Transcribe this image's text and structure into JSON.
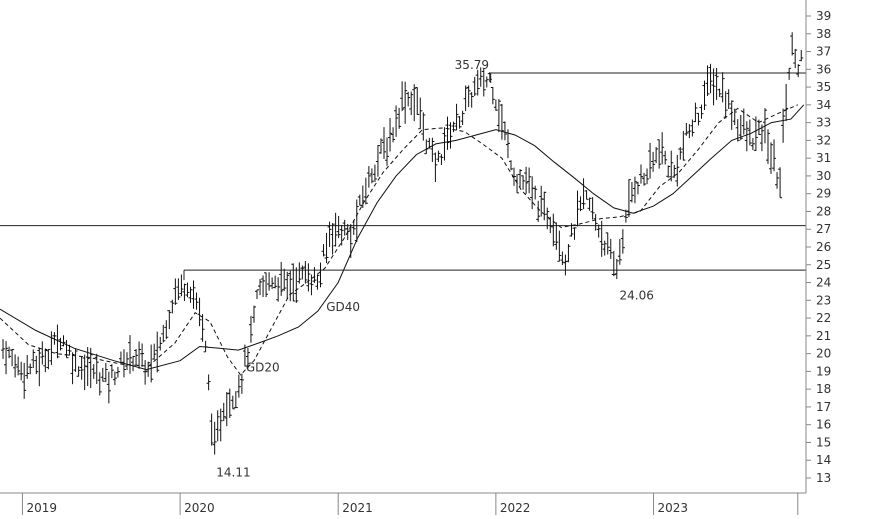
{
  "chart_data": {
    "type": "line",
    "style": "weekly-bar-price-chart",
    "colors": {
      "price": "#111111",
      "lines": "#222222",
      "axis": "#888888",
      "text": "#333333"
    },
    "y_axis": {
      "range": [
        12.2,
        39.9
      ],
      "ticks": [
        13,
        14,
        15,
        16,
        17,
        18,
        19,
        20,
        21,
        22,
        23,
        24,
        25,
        26,
        27,
        28,
        29,
        30,
        31,
        32,
        33,
        34,
        35,
        36,
        37,
        38,
        39
      ],
      "side": "right"
    },
    "x_axis": {
      "range": [
        "2018-11-10",
        "2023-12-20"
      ],
      "ticks": [
        {
          "label": "2019",
          "date": "2019-01-01"
        },
        {
          "label": "2020",
          "date": "2020-01-01"
        },
        {
          "label": "2021",
          "date": "2021-01-01"
        },
        {
          "label": "2022",
          "date": "2022-01-01"
        },
        {
          "label": "2023",
          "date": "2023-01-01"
        }
      ],
      "minor_tick_dates": [
        "2023-12-01"
      ]
    },
    "horizontal_lines": [
      {
        "value": 27.2,
        "from": "2018-11-10",
        "to": "2023-12-20"
      },
      {
        "value": 24.7,
        "from": "2020-01-10",
        "to": "2023-12-20"
      },
      {
        "value": 35.79,
        "from": "2021-12-20",
        "to": "2023-12-20"
      }
    ],
    "annotations": [
      {
        "text": "35.79",
        "date": "2021-12-20",
        "value": 35.79
      },
      {
        "text": "24.06",
        "date": "2022-10-05",
        "value": 24.06
      },
      {
        "text": "14.11",
        "date": "2020-03-20",
        "value": 14.11
      },
      {
        "text": "GD40",
        "date": "2021-01-01",
        "value": 22.4
      },
      {
        "text": "GD20",
        "date": "2020-06-15",
        "value": 19.0
      }
    ],
    "series": [
      {
        "label_text": "GD20",
        "style": "dashed",
        "x": [
          "2018-11-10",
          "2019-01-15",
          "2019-03-20",
          "2019-06-01",
          "2019-08-20",
          "2019-10-20",
          "2019-12-20",
          "2020-02-05",
          "2020-03-10",
          "2020-04-20",
          "2020-05-20",
          "2020-06-20",
          "2020-08-01",
          "2020-09-10",
          "2020-10-20",
          "2020-12-01",
          "2021-01-15",
          "2021-03-01",
          "2021-04-15",
          "2021-06-01",
          "2021-07-15",
          "2021-09-01",
          "2021-10-20",
          "2021-12-01",
          "2022-01-15",
          "2022-03-01",
          "2022-04-15",
          "2022-06-01",
          "2022-07-15",
          "2022-09-01",
          "2022-10-15",
          "2022-12-01",
          "2023-01-15",
          "2023-03-01",
          "2023-04-15",
          "2023-06-01",
          "2023-07-15",
          "2023-09-01",
          "2023-10-15",
          "2023-12-01"
        ],
        "values": [
          22.0,
          20.5,
          20.0,
          19.8,
          19.4,
          19.3,
          20.6,
          22.3,
          21.8,
          19.8,
          18.8,
          19.6,
          21.5,
          23.3,
          24.0,
          24.8,
          26.5,
          28.5,
          30.2,
          31.5,
          32.6,
          32.7,
          32.5,
          31.8,
          31.0,
          29.2,
          28.0,
          27.1,
          27.3,
          27.6,
          27.7,
          28.0,
          29.4,
          30.2,
          31.5,
          33.0,
          33.8,
          33.0,
          33.5,
          34.0
        ]
      },
      {
        "label_text": "GD40",
        "style": "solid",
        "x": [
          "2018-11-10",
          "2019-02-01",
          "2019-05-01",
          "2019-08-01",
          "2019-10-15",
          "2020-01-01",
          "2020-02-15",
          "2020-04-01",
          "2020-05-15",
          "2020-07-01",
          "2020-08-15",
          "2020-10-01",
          "2020-11-15",
          "2021-01-01",
          "2021-02-15",
          "2021-04-01",
          "2021-05-15",
          "2021-07-01",
          "2021-08-15",
          "2021-10-01",
          "2021-11-15",
          "2022-01-01",
          "2022-02-15",
          "2022-04-01",
          "2022-05-15",
          "2022-07-01",
          "2022-08-15",
          "2022-10-01",
          "2022-11-15",
          "2023-01-01",
          "2023-02-15",
          "2023-04-01",
          "2023-05-15",
          "2023-07-01",
          "2023-08-15",
          "2023-10-01",
          "2023-11-15",
          "2023-12-15"
        ],
        "values": [
          22.5,
          21.3,
          20.3,
          19.6,
          19.1,
          19.6,
          20.4,
          20.3,
          20.2,
          20.6,
          21.0,
          21.5,
          22.4,
          24.0,
          26.5,
          28.5,
          30.0,
          31.2,
          31.8,
          32.0,
          32.3,
          32.6,
          32.3,
          31.7,
          30.8,
          29.9,
          29.0,
          28.2,
          27.9,
          28.3,
          29.0,
          30.0,
          31.0,
          32.0,
          32.4,
          33.0,
          33.2,
          34.0
        ]
      }
    ],
    "price_path": {
      "x": [
        "2018-11-10",
        "2019-01-01",
        "2019-02-10",
        "2019-04-01",
        "2019-05-01",
        "2019-06-15",
        "2019-07-20",
        "2019-08-20",
        "2019-09-20",
        "2019-10-20",
        "2019-11-20",
        "2019-12-20",
        "2020-01-20",
        "2020-02-15",
        "2020-03-01",
        "2020-03-20",
        "2020-04-10",
        "2020-04-30",
        "2020-05-20",
        "2020-06-10",
        "2020-07-01",
        "2020-08-01",
        "2020-09-01",
        "2020-10-01",
        "2020-10-20",
        "2020-11-15",
        "2020-12-15",
        "2021-01-10",
        "2021-02-01",
        "2021-03-01",
        "2021-04-01",
        "2021-05-01",
        "2021-06-01",
        "2021-07-01",
        "2021-07-25",
        "2021-08-15",
        "2021-09-15",
        "2021-10-15",
        "2021-11-15",
        "2021-12-20",
        "2022-01-15",
        "2022-02-15",
        "2022-03-15",
        "2022-04-15",
        "2022-05-15",
        "2022-06-10",
        "2022-07-01",
        "2022-07-25",
        "2022-08-20",
        "2022-09-15",
        "2022-10-05",
        "2022-10-25",
        "2022-11-15",
        "2022-12-15",
        "2023-01-15",
        "2023-02-15",
        "2023-03-15",
        "2023-04-15",
        "2023-05-15",
        "2023-06-15",
        "2023-07-15",
        "2023-08-15",
        "2023-09-15",
        "2023-10-20",
        "2023-11-01",
        "2023-11-20",
        "2023-12-05",
        "2023-12-15"
      ],
      "values": [
        20.5,
        19.0,
        19.5,
        21.0,
        19.5,
        19.0,
        18.5,
        19.5,
        20.0,
        19.0,
        20.8,
        23.5,
        24.0,
        22.5,
        20.0,
        14.5,
        17.0,
        17.5,
        18.5,
        20.5,
        23.5,
        24.2,
        23.8,
        24.3,
        24.5,
        24.0,
        27.0,
        27.0,
        26.5,
        29.0,
        31.0,
        32.0,
        34.5,
        34.2,
        32.0,
        30.5,
        32.5,
        33.5,
        35.0,
        35.5,
        33.0,
        30.0,
        29.5,
        28.2,
        27.5,
        25.2,
        27.0,
        29.0,
        27.5,
        26.0,
        24.5,
        27.0,
        29.5,
        30.0,
        31.5,
        30.0,
        32.0,
        33.5,
        35.5,
        34.5,
        33.0,
        32.0,
        32.5,
        29.5,
        34.0,
        37.5,
        36.0,
        37.5
      ]
    }
  }
}
